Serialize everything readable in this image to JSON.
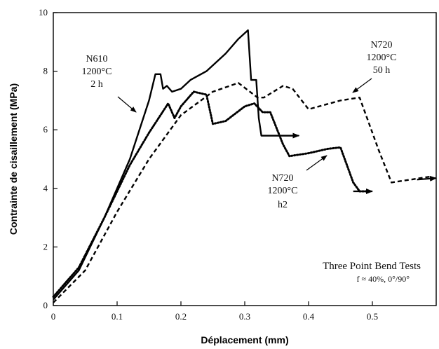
{
  "chart_data": {
    "type": "line",
    "xlabel": "Déplacement (mm)",
    "ylabel": "Contrainte de cisaillement (MPa)",
    "xlim": [
      0,
      0.6
    ],
    "ylim": [
      0,
      10
    ],
    "xticks": [
      "0",
      "0.1",
      "0.2",
      "0.3",
      "0.4",
      "0.5"
    ],
    "yticks": [
      "0",
      "2",
      "4",
      "6",
      "8",
      "10"
    ],
    "grid": false,
    "legend": "none",
    "series": [
      {
        "style": "solid",
        "points": [
          [
            0.0,
            0.2
          ],
          [
            0.04,
            1.2
          ],
          [
            0.08,
            3.0
          ],
          [
            0.12,
            5.0
          ],
          [
            0.15,
            7.0
          ],
          [
            0.16,
            7.9
          ],
          [
            0.168,
            7.9
          ],
          [
            0.172,
            7.4
          ],
          [
            0.178,
            7.5
          ],
          [
            0.186,
            7.3
          ],
          [
            0.2,
            7.4
          ],
          [
            0.215,
            7.7
          ],
          [
            0.24,
            8.0
          ],
          [
            0.27,
            8.6
          ],
          [
            0.29,
            9.1
          ],
          [
            0.305,
            9.4
          ],
          [
            0.31,
            7.7
          ],
          [
            0.318,
            7.7
          ],
          [
            0.322,
            6.4
          ],
          [
            0.326,
            5.8
          ],
          [
            0.38,
            5.8
          ]
        ]
      },
      {
        "style": "dotted",
        "points": [
          [
            0.0,
            0.3
          ],
          [
            0.04,
            1.3
          ],
          [
            0.08,
            3.0
          ],
          [
            0.12,
            4.8
          ],
          [
            0.15,
            5.9
          ],
          [
            0.18,
            6.9
          ],
          [
            0.19,
            6.4
          ],
          [
            0.2,
            6.8
          ],
          [
            0.22,
            7.3
          ],
          [
            0.24,
            7.2
          ],
          [
            0.25,
            6.2
          ],
          [
            0.27,
            6.3
          ],
          [
            0.3,
            6.8
          ],
          [
            0.315,
            6.9
          ],
          [
            0.328,
            6.6
          ],
          [
            0.34,
            6.6
          ],
          [
            0.36,
            5.5
          ],
          [
            0.37,
            5.1
          ],
          [
            0.4,
            5.2
          ],
          [
            0.43,
            5.35
          ],
          [
            0.45,
            5.4
          ],
          [
            0.47,
            4.2
          ],
          [
            0.48,
            3.9
          ],
          [
            0.49,
            3.9
          ]
        ]
      },
      {
        "style": "dashed",
        "points": [
          [
            0.0,
            0.1
          ],
          [
            0.05,
            1.2
          ],
          [
            0.1,
            3.2
          ],
          [
            0.15,
            5.0
          ],
          [
            0.2,
            6.5
          ],
          [
            0.25,
            7.3
          ],
          [
            0.29,
            7.6
          ],
          [
            0.32,
            7.1
          ],
          [
            0.33,
            7.1
          ],
          [
            0.36,
            7.5
          ],
          [
            0.375,
            7.4
          ],
          [
            0.4,
            6.7
          ],
          [
            0.45,
            7.0
          ],
          [
            0.48,
            7.1
          ],
          [
            0.51,
            5.3
          ],
          [
            0.53,
            4.2
          ],
          [
            0.56,
            4.3
          ],
          [
            0.59,
            4.4
          ]
        ]
      }
    ],
    "arrows": [
      {
        "from": [
          0.326,
          5.8
        ],
        "to": [
          0.385,
          5.8
        ]
      },
      {
        "from": [
          0.47,
          3.9
        ],
        "to": [
          0.5,
          3.9
        ]
      },
      {
        "from": [
          0.57,
          4.3
        ],
        "to": [
          0.6,
          4.35
        ]
      }
    ],
    "annotations": [
      {
        "lines": [
          "N610",
          "1200°C",
          "2 h"
        ]
      },
      {
        "lines": [
          "N720",
          "1200°C",
          "50 h"
        ]
      },
      {
        "lines": [
          "N720",
          "1200°C",
          "h2"
        ]
      }
    ],
    "note": [
      "Three Point Bend Tests",
      "f ≈ 40%, 0°/90°"
    ]
  }
}
